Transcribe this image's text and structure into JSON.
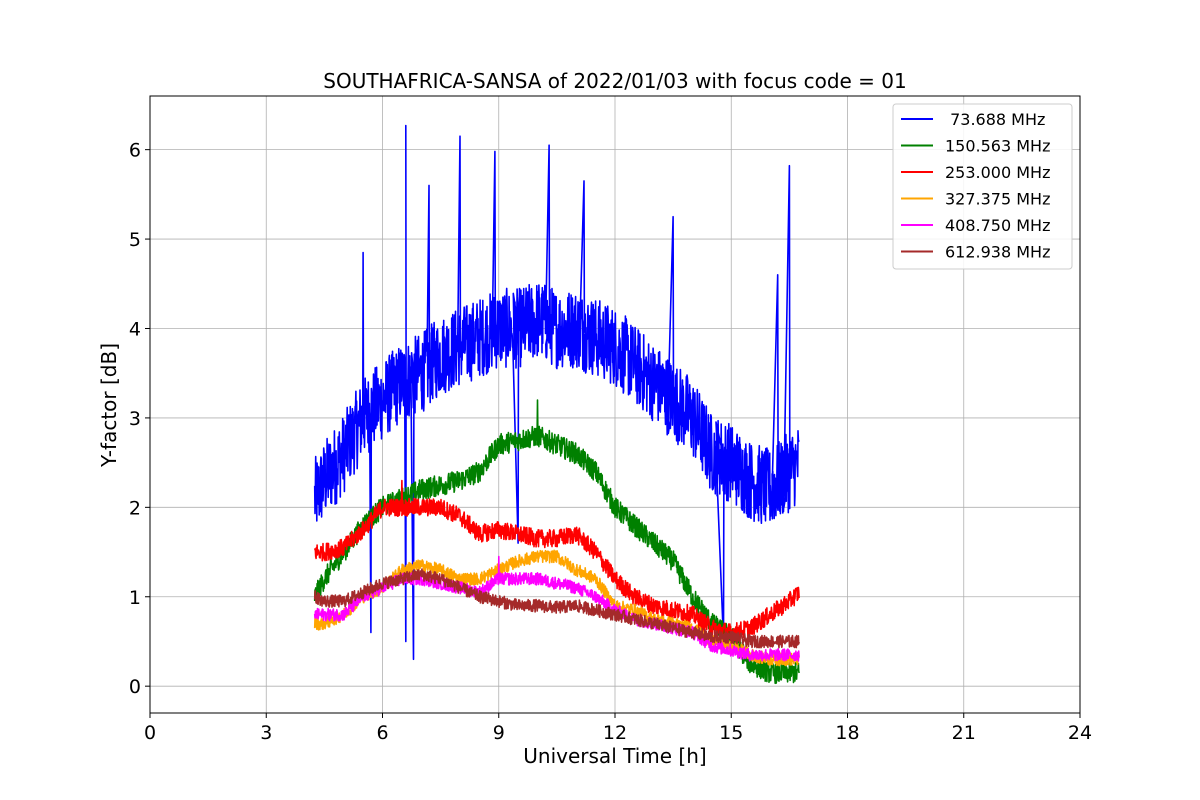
{
  "chart_data": {
    "type": "line",
    "title": "SOUTHAFRICA-SANSA of 2022/01/03 with focus code = 01",
    "xlabel": "Universal Time [h]",
    "ylabel": "Y-factor [dB]",
    "xlim": [
      0,
      24
    ],
    "ylim": [
      -0.3,
      6.6
    ],
    "xticks": [
      0,
      3,
      6,
      9,
      12,
      15,
      18,
      21,
      24
    ],
    "yticks": [
      0,
      1,
      2,
      3,
      4,
      5,
      6
    ],
    "grid": true,
    "legend_position": "top-right",
    "series": [
      {
        "name": " 73.688 MHz",
        "color": "#0000ff",
        "x": [
          4.25,
          4.5,
          5,
          5.5,
          6,
          6.5,
          7,
          7.5,
          8,
          8.5,
          9,
          9.5,
          10,
          10.5,
          11,
          11.5,
          12,
          12.5,
          13,
          13.5,
          14,
          14.5,
          15,
          15.5,
          16,
          16.5,
          16.75
        ],
        "y": [
          2.1,
          2.3,
          2.6,
          3.0,
          3.2,
          3.4,
          3.5,
          3.7,
          3.8,
          3.9,
          4.0,
          4.0,
          4.1,
          4.0,
          4.0,
          3.9,
          3.8,
          3.6,
          3.4,
          3.2,
          3.0,
          2.6,
          2.5,
          2.3,
          2.2,
          2.4,
          2.5
        ],
        "noise": 0.45,
        "spikes": [
          [
            5.5,
            4.85
          ],
          [
            6.6,
            6.27
          ],
          [
            7.2,
            5.6
          ],
          [
            8.0,
            6.15
          ],
          [
            8.9,
            5.98
          ],
          [
            10.3,
            6.05
          ],
          [
            11.2,
            5.65
          ],
          [
            13.5,
            5.25
          ],
          [
            16.5,
            5.82
          ],
          [
            16.2,
            4.6
          ],
          [
            6.6,
            0.5
          ],
          [
            6.8,
            0.3
          ],
          [
            9.5,
            1.6
          ],
          [
            14.8,
            0.5
          ],
          [
            5.7,
            0.6
          ]
        ]
      },
      {
        "name": "150.563 MHz",
        "color": "#008000",
        "x": [
          4.25,
          4.5,
          5,
          5.5,
          6,
          6.5,
          7,
          7.5,
          8,
          8.5,
          9,
          9.5,
          10,
          10.5,
          11,
          11.5,
          12,
          12.5,
          13,
          13.5,
          14,
          14.5,
          15,
          15.5,
          16,
          16.5,
          16.75
        ],
        "y": [
          1.0,
          1.2,
          1.5,
          1.8,
          2.0,
          2.1,
          2.2,
          2.25,
          2.3,
          2.4,
          2.7,
          2.75,
          2.8,
          2.7,
          2.6,
          2.4,
          2.0,
          1.8,
          1.6,
          1.4,
          1.0,
          0.7,
          0.55,
          0.25,
          0.15,
          0.15,
          0.15
        ],
        "noise": 0.12,
        "spikes": [
          [
            10.0,
            3.2
          ]
        ]
      },
      {
        "name": "253.000 MHz",
        "color": "#ff0000",
        "x": [
          4.25,
          4.5,
          5,
          5.5,
          6,
          6.5,
          7,
          7.5,
          8,
          8.5,
          9,
          9.5,
          10,
          10.5,
          11,
          11.5,
          12,
          12.5,
          13,
          13.5,
          14,
          14.5,
          15,
          15.5,
          16,
          16.5,
          16.75
        ],
        "y": [
          1.5,
          1.5,
          1.55,
          1.75,
          2.0,
          2.0,
          2.0,
          2.0,
          1.9,
          1.7,
          1.75,
          1.7,
          1.65,
          1.65,
          1.7,
          1.5,
          1.2,
          1.0,
          0.9,
          0.85,
          0.8,
          0.65,
          0.6,
          0.65,
          0.8,
          0.95,
          1.05
        ],
        "noise": 0.1,
        "spikes": [
          [
            6.5,
            2.3
          ]
        ]
      },
      {
        "name": "327.375 MHz",
        "color": "#ffa500",
        "x": [
          4.25,
          4.5,
          5,
          5.5,
          6,
          6.5,
          7,
          7.5,
          8,
          8.5,
          9,
          9.5,
          10,
          10.5,
          11,
          11.5,
          12,
          12.5,
          13,
          13.5,
          14,
          14.5,
          15,
          15.5,
          16,
          16.5,
          16.75
        ],
        "y": [
          0.7,
          0.7,
          0.8,
          1.0,
          1.1,
          1.3,
          1.35,
          1.3,
          1.2,
          1.2,
          1.3,
          1.4,
          1.45,
          1.45,
          1.3,
          1.2,
          0.9,
          0.85,
          0.75,
          0.7,
          0.65,
          0.5,
          0.45,
          0.35,
          0.3,
          0.3,
          0.3
        ],
        "noise": 0.07,
        "spikes": []
      },
      {
        "name": "408.750 MHz",
        "color": "#ff00ff",
        "x": [
          4.25,
          4.5,
          5,
          5.5,
          6,
          6.5,
          7,
          7.5,
          8,
          8.5,
          9,
          9.5,
          10,
          10.5,
          11,
          11.5,
          12,
          12.5,
          13,
          13.5,
          14,
          14.5,
          15,
          15.5,
          16,
          16.5,
          16.75
        ],
        "y": [
          0.8,
          0.8,
          0.8,
          1.0,
          1.1,
          1.2,
          1.2,
          1.15,
          1.1,
          1.05,
          1.2,
          1.2,
          1.2,
          1.15,
          1.1,
          1.0,
          0.85,
          0.75,
          0.7,
          0.65,
          0.6,
          0.45,
          0.4,
          0.35,
          0.35,
          0.35,
          0.35
        ],
        "noise": 0.07,
        "spikes": [
          [
            9.0,
            1.45
          ]
        ]
      },
      {
        "name": "612.938 MHz",
        "color": "#a52a2a",
        "x": [
          4.25,
          4.5,
          5,
          5.5,
          6,
          6.5,
          7,
          7.5,
          8,
          8.5,
          9,
          9.5,
          10,
          10.5,
          11,
          11.5,
          12,
          12.5,
          13,
          13.5,
          14,
          14.5,
          15,
          15.5,
          16,
          16.5,
          16.75
        ],
        "y": [
          1.0,
          0.95,
          0.95,
          1.05,
          1.15,
          1.2,
          1.25,
          1.2,
          1.1,
          1.0,
          0.95,
          0.9,
          0.9,
          0.88,
          0.9,
          0.85,
          0.8,
          0.75,
          0.7,
          0.65,
          0.6,
          0.55,
          0.55,
          0.5,
          0.5,
          0.5,
          0.5
        ],
        "noise": 0.07,
        "spikes": []
      }
    ]
  }
}
